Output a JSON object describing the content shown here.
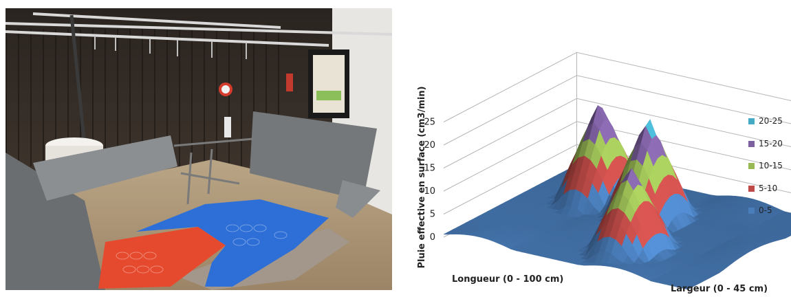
{
  "photo": {
    "name": "rainfall-simulator-photo"
  },
  "chart_data": {
    "type": "surface",
    "xlabel": "Longueur (0 - 100 cm)",
    "ylabel": "Largeur (0 - 45 cm)",
    "zlabel": "Pluie effective en surface (cm3/min)",
    "zlim": [
      0,
      25
    ],
    "z_ticks": [
      "0",
      "5",
      "10",
      "15",
      "20",
      "25"
    ],
    "legend": [
      "20-25",
      "15-20",
      "10-15",
      "5-10",
      "0-5"
    ],
    "band_colors": {
      "0-5": "#4a7ebb",
      "5-10": "#be4b48",
      "10-15": "#98b954",
      "15-20": "#7d60a0",
      "20-25": "#46aac5"
    },
    "peaks": [
      {
        "longueur": 25,
        "largeur": 32,
        "value": 22
      },
      {
        "longueur": 50,
        "largeur": 28,
        "value": 22.5
      },
      {
        "longueur": 62,
        "largeur": 12,
        "value": 19
      }
    ]
  }
}
